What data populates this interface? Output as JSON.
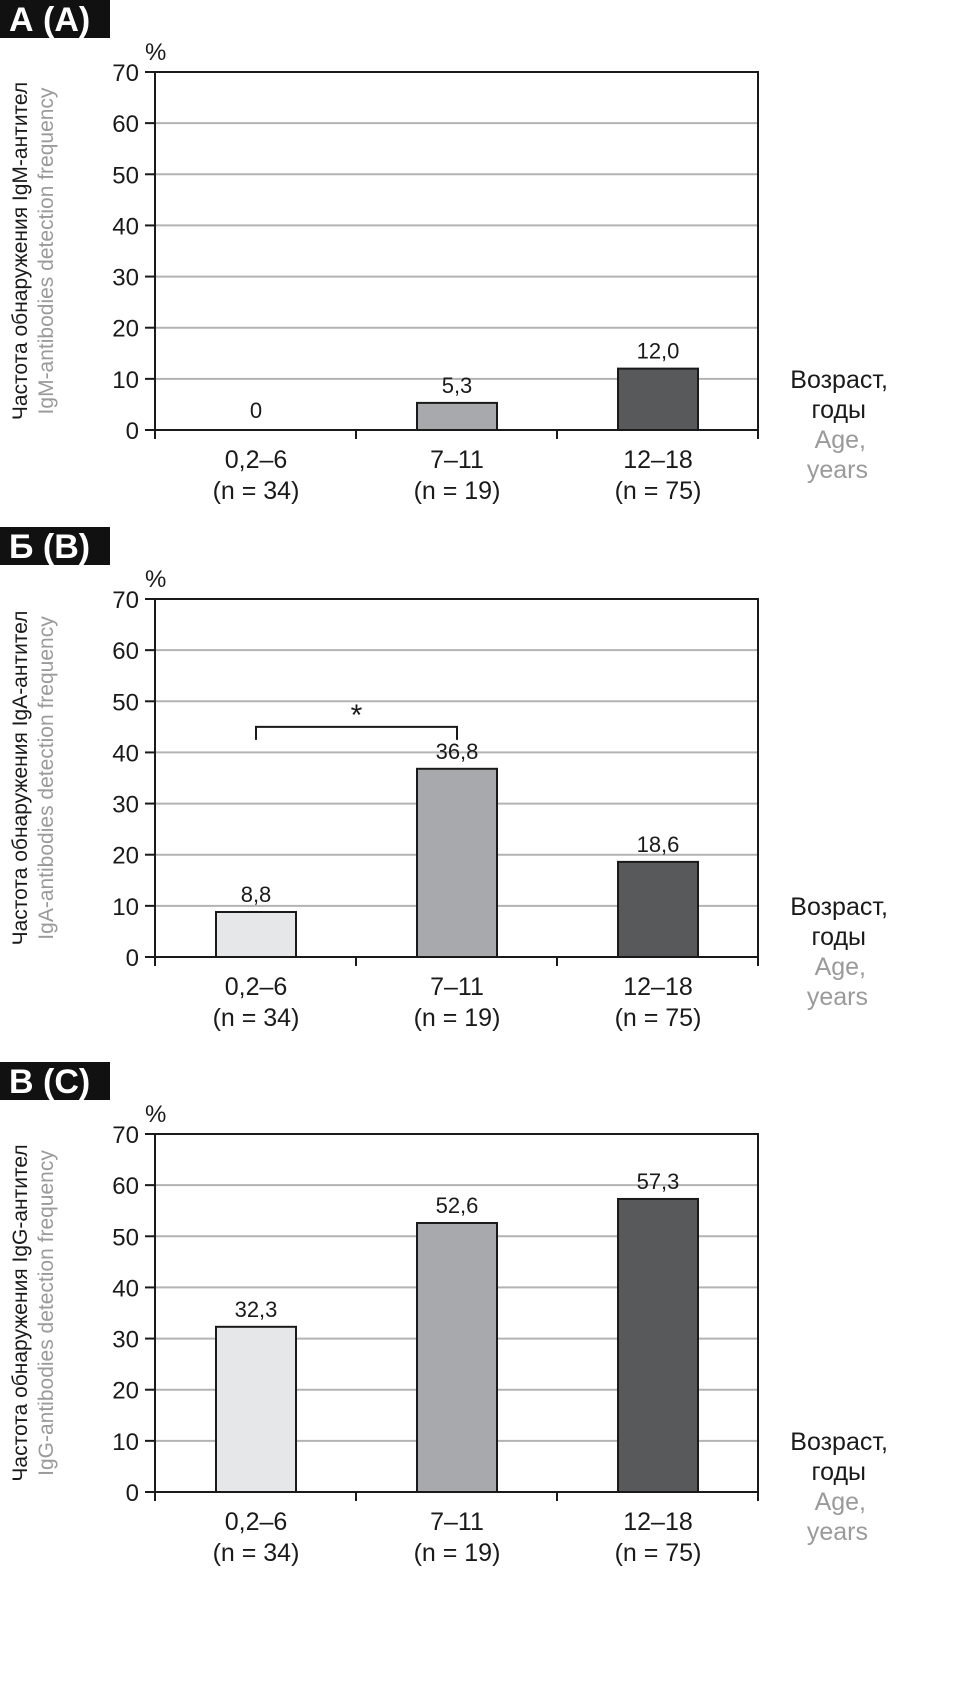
{
  "chart_data": [
    {
      "type": "bar",
      "panel_label": "А (A)",
      "ylabel": "Частота обнаружения IgM-антител",
      "ylabel_en": "IgM-antibodies detection frequency",
      "unit": "%",
      "xlabel": "Возраст, годы",
      "xlabel_en": "Age, years",
      "categories": [
        "0,2–6",
        "7–11",
        "12–18"
      ],
      "category_n": [
        "(n = 34)",
        "(n = 19)",
        "(n = 75)"
      ],
      "values": [
        0,
        5.3,
        12.0
      ],
      "value_labels": [
        "0",
        "5,3",
        "12,0"
      ],
      "bar_colors": [
        "#e6e7e8",
        "#a7a9ac",
        "#58595b"
      ],
      "ylim": [
        0,
        70
      ],
      "yticks": [
        "0",
        "10",
        "20",
        "30",
        "40",
        "50",
        "60",
        "70"
      ],
      "grid": true,
      "significance": null
    },
    {
      "type": "bar",
      "panel_label": "Б (B)",
      "ylabel": "Частота обнаружения IgA-антител",
      "ylabel_en": "IgA-antibodies detection frequency",
      "unit": "%",
      "xlabel": "Возраст, годы",
      "xlabel_en": "Age, years",
      "categories": [
        "0,2–6",
        "7–11",
        "12–18"
      ],
      "category_n": [
        "(n = 34)",
        "(n = 19)",
        "(n = 75)"
      ],
      "values": [
        8.8,
        36.8,
        18.6
      ],
      "value_labels": [
        "8,8",
        "36,8",
        "18,6"
      ],
      "bar_colors": [
        "#e6e7e8",
        "#a7a9ac",
        "#58595b"
      ],
      "ylim": [
        0,
        70
      ],
      "yticks": [
        "0",
        "10",
        "20",
        "30",
        "40",
        "50",
        "60",
        "70"
      ],
      "grid": true,
      "significance": {
        "from": 0,
        "to": 1,
        "level": 45,
        "symbol": "*"
      }
    },
    {
      "type": "bar",
      "panel_label": "В (C)",
      "ylabel": "Частота обнаружения IgG-антител",
      "ylabel_en": "IgG-antibodies detection frequency",
      "unit": "%",
      "xlabel": "Возраст, годы",
      "xlabel_en": "Age, years",
      "categories": [
        "0,2–6",
        "7–11",
        "12–18"
      ],
      "category_n": [
        "(n = 34)",
        "(n = 19)",
        "(n = 75)"
      ],
      "values": [
        32.3,
        52.6,
        57.3
      ],
      "value_labels": [
        "32,3",
        "52,6",
        "57,3"
      ],
      "bar_colors": [
        "#e6e7e8",
        "#a7a9ac",
        "#58595b"
      ],
      "ylim": [
        0,
        70
      ],
      "yticks": [
        "0",
        "10",
        "20",
        "30",
        "40",
        "50",
        "60",
        "70"
      ],
      "grid": true,
      "significance": null
    }
  ]
}
